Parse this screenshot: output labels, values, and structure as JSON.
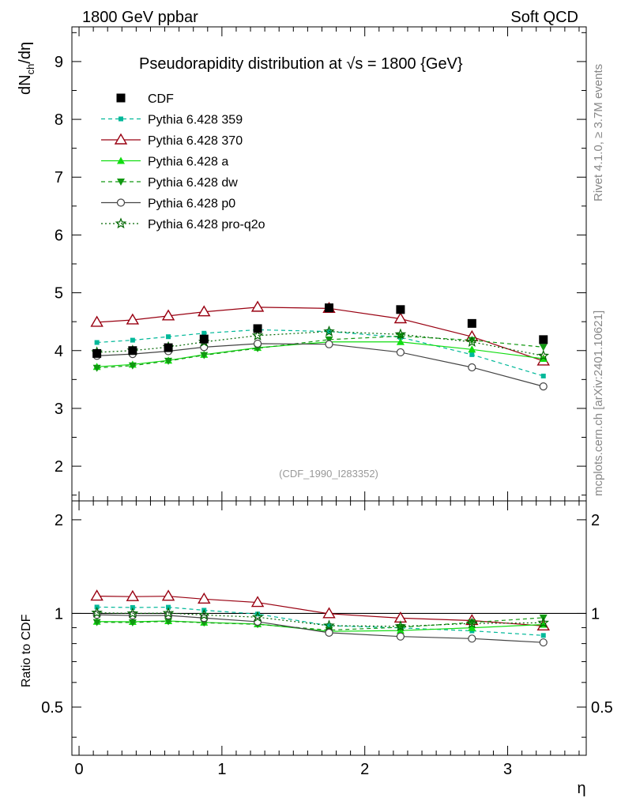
{
  "header": {
    "left_label": "1800 GeV ppbar",
    "right_label": "Soft QCD"
  },
  "side_labels": {
    "rivet": "Rivet 4.1.0, ≥ 3.7M events",
    "mcplots": "mcplots.cern.ch [arXiv:2401.10621]"
  },
  "chart_data": {
    "type": "line",
    "title_prefix": "Pseudorapidity distribution at ",
    "title_sqrt_s": "√s",
    "title_suffix": " = 1800 {GeV}",
    "watermark": "(CDF_1990_I283352)",
    "ylabel": "dNch/dη",
    "ylabel_main": "dN",
    "ylabel_sub": "ch",
    "ylabel_tail": "/dη",
    "ratio_ylabel": "Ratio to CDF",
    "xlabel": "η",
    "xlim": [
      -0.05,
      3.55
    ],
    "ylim": [
      1.4,
      9.6
    ],
    "ratio_ylim": [
      0.35,
      2.3
    ],
    "x_ticks": [
      "0",
      "1",
      "2",
      "3"
    ],
    "x_tick_values": [
      0,
      1,
      2,
      3
    ],
    "y_ticks": [
      "2",
      "3",
      "4",
      "5",
      "6",
      "7",
      "8",
      "9"
    ],
    "y_tick_values": [
      2,
      3,
      4,
      5,
      6,
      7,
      8,
      9
    ],
    "ratio_ticks": [
      "0.5",
      "1",
      "2"
    ],
    "ratio_tick_values": [
      0.5,
      1,
      2
    ],
    "data": {
      "name": "CDF",
      "color": "#000000",
      "x": [
        0.125,
        0.375,
        0.625,
        0.875,
        1.25,
        1.75,
        2.25,
        2.75,
        3.25
      ],
      "y": [
        3.95,
        4.0,
        4.05,
        4.2,
        4.38,
        4.74,
        4.71,
        4.47,
        4.19
      ]
    },
    "series": [
      {
        "name": "Pythia 6.428 359",
        "color": "#00b899",
        "dash": "5,4",
        "marker": "square-small",
        "x": [
          0.125,
          0.375,
          0.625,
          0.875,
          1.25,
          1.75,
          2.25,
          2.75,
          3.25
        ],
        "y": [
          4.14,
          4.18,
          4.24,
          4.3,
          4.36,
          4.33,
          4.23,
          3.93,
          3.56
        ]
      },
      {
        "name": "Pythia 6.428 370",
        "color": "#990011",
        "dash": "",
        "marker": "triangle-open",
        "x": [
          0.125,
          0.375,
          0.625,
          0.875,
          1.25,
          1.75,
          2.25,
          2.75,
          3.25
        ],
        "y": [
          4.49,
          4.53,
          4.6,
          4.67,
          4.75,
          4.73,
          4.55,
          4.24,
          3.82
        ]
      },
      {
        "name": "Pythia 6.428 a",
        "color": "#11dd11",
        "dash": "",
        "marker": "triangle-filled",
        "x": [
          0.125,
          0.375,
          0.625,
          0.875,
          1.25,
          1.75,
          2.25,
          2.75,
          3.25
        ],
        "y": [
          3.72,
          3.76,
          3.83,
          3.93,
          4.05,
          4.15,
          4.15,
          4.02,
          3.86
        ]
      },
      {
        "name": "Pythia 6.428 dw",
        "color": "#119911",
        "dash": "5,4",
        "marker": "triangle-down",
        "x": [
          0.125,
          0.375,
          0.625,
          0.875,
          1.25,
          1.75,
          2.25,
          2.75,
          3.25
        ],
        "y": [
          3.7,
          3.74,
          3.82,
          3.92,
          4.04,
          4.19,
          4.25,
          4.18,
          4.06
        ]
      },
      {
        "name": "Pythia 6.428 p0",
        "color": "#444444",
        "dash": "",
        "marker": "circle-open",
        "x": [
          0.125,
          0.375,
          0.625,
          0.875,
          1.25,
          1.75,
          2.25,
          2.75,
          3.25
        ],
        "y": [
          3.91,
          3.94,
          3.99,
          4.06,
          4.12,
          4.11,
          3.97,
          3.71,
          3.38
        ]
      },
      {
        "name": "Pythia 6.428 pro-q2o",
        "color": "#006600",
        "dash": "2,3",
        "marker": "star",
        "x": [
          0.125,
          0.375,
          0.625,
          0.875,
          1.25,
          1.75,
          2.25,
          2.75,
          3.25
        ],
        "y": [
          3.97,
          4.0,
          4.06,
          4.15,
          4.26,
          4.33,
          4.28,
          4.15,
          3.91
        ]
      }
    ]
  }
}
